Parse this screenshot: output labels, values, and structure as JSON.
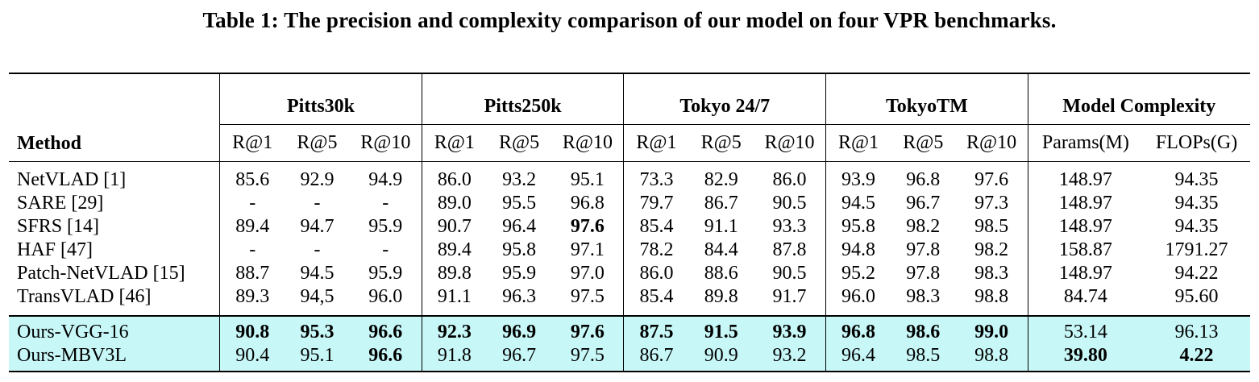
{
  "caption": "Table 1: The precision and complexity comparison of our model on four VPR benchmarks.",
  "columns": {
    "method": "Method",
    "groups": [
      "Pitts30k",
      "Pitts250k",
      "Tokyo 24/7",
      "TokyoTM",
      "Model Complexity"
    ],
    "sub": [
      "R@1",
      "R@5",
      "R@10",
      "R@1",
      "R@5",
      "R@10",
      "R@1",
      "R@5",
      "R@10",
      "R@1",
      "R@5",
      "R@10",
      "Params(M)",
      "FLOPs(G)"
    ]
  },
  "rows": [
    {
      "method": "NetVLAD [1]",
      "cells": [
        "85.6",
        "92.9",
        "94.9",
        "86.0",
        "93.2",
        "95.1",
        "73.3",
        "82.9",
        "86.0",
        "93.9",
        "96.8",
        "97.6",
        "148.97",
        "94.35"
      ]
    },
    {
      "method": "SARE [29]",
      "cells": [
        "-",
        "-",
        "-",
        "89.0",
        "95.5",
        "96.8",
        "79.7",
        "86.7",
        "90.5",
        "94.5",
        "96.7",
        "97.3",
        "148.97",
        "94.35"
      ]
    },
    {
      "method": "SFRS [14]",
      "cells": [
        "89.4",
        "94.7",
        "95.9",
        "90.7",
        "96.4",
        "97.6",
        "85.4",
        "91.1",
        "93.3",
        "95.8",
        "98.2",
        "98.5",
        "148.97",
        "94.35"
      ]
    },
    {
      "method": "HAF [47]",
      "cells": [
        "-",
        "-",
        "-",
        "89.4",
        "95.8",
        "97.1",
        "78.2",
        "84.4",
        "87.8",
        "94.8",
        "97.8",
        "98.2",
        "158.87",
        "1791.27"
      ]
    },
    {
      "method": "Patch-NetVLAD [15]",
      "cells": [
        "88.7",
        "94.5",
        "95.9",
        "89.8",
        "95.9",
        "97.0",
        "86.0",
        "88.6",
        "90.5",
        "95.2",
        "97.8",
        "98.3",
        "148.97",
        "94.22"
      ]
    },
    {
      "method": "TransVLAD [46]",
      "cells": [
        "89.3",
        "94,5",
        "96.0",
        "91.1",
        "96.3",
        "97.5",
        "85.4",
        "89.8",
        "91.7",
        "96.0",
        "98.3",
        "98.8",
        "84.74",
        "95.60"
      ]
    }
  ],
  "ours": [
    {
      "method": "Ours-VGG-16",
      "cells": [
        "90.8",
        "95.3",
        "96.6",
        "92.3",
        "96.9",
        "97.6",
        "87.5",
        "91.5",
        "93.9",
        "96.8",
        "98.6",
        "99.0",
        "53.14",
        "96.13"
      ]
    },
    {
      "method": "Ours-MBV3L",
      "cells": [
        "90.4",
        "95.1",
        "96.6",
        "91.8",
        "96.7",
        "97.5",
        "86.7",
        "90.9",
        "93.2",
        "96.4",
        "98.5",
        "98.8",
        "39.80",
        "4.22"
      ]
    }
  ],
  "colors": {
    "highlight": "#c8f7f7"
  }
}
